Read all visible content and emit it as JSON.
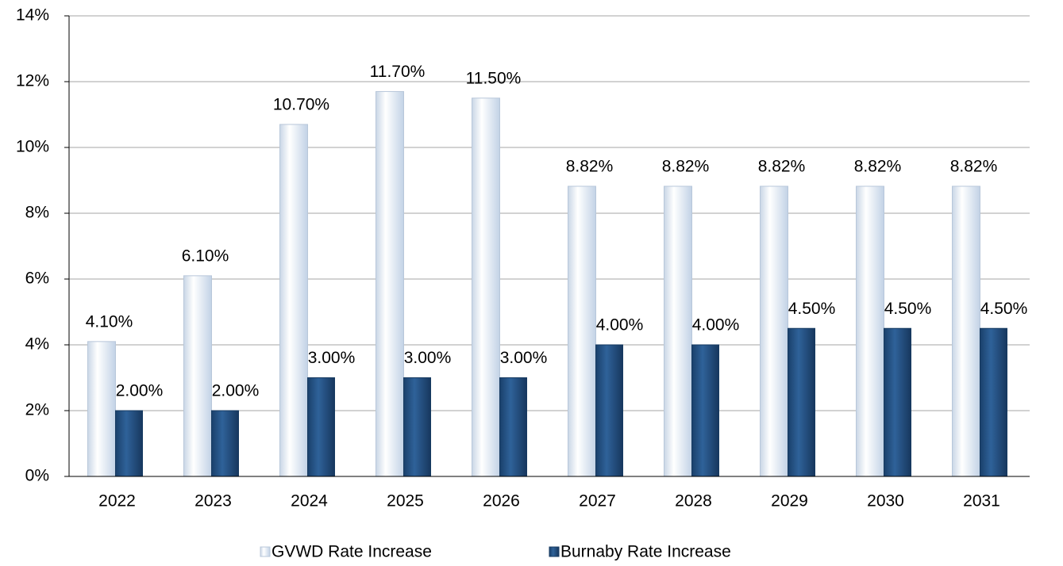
{
  "chart_data": {
    "type": "bar",
    "categories": [
      "2022",
      "2023",
      "2024",
      "2025",
      "2026",
      "2027",
      "2028",
      "2029",
      "2030",
      "2031"
    ],
    "series": [
      {
        "name": "GVWD Rate Increase",
        "color": "#dce6f2",
        "values": [
          4.1,
          6.1,
          10.7,
          11.7,
          11.5,
          8.82,
          8.82,
          8.82,
          8.82,
          8.82
        ],
        "value_labels": [
          "4.10%",
          "6.10%",
          "10.70%",
          "11.70%",
          "11.50%",
          "8.82%",
          "8.82%",
          "8.82%",
          "8.82%",
          "8.82%"
        ]
      },
      {
        "name": "Burnaby Rate Increase",
        "color": "#1f4e79",
        "values": [
          2,
          2,
          3,
          3,
          3,
          4,
          4,
          4.5,
          4.5,
          4.5
        ],
        "value_labels": [
          "2.00%",
          "2.00%",
          "3.00%",
          "3.00%",
          "3.00%",
          "4.00%",
          "4.00%",
          "4.50%",
          "4.50%",
          "4.50%"
        ]
      }
    ],
    "ylim": [
      0,
      14
    ],
    "yticks": [
      {
        "value": 0,
        "label": "0%"
      },
      {
        "value": 2,
        "label": "2%"
      },
      {
        "value": 4,
        "label": "4%"
      },
      {
        "value": 6,
        "label": "6%"
      },
      {
        "value": 8,
        "label": "8%"
      },
      {
        "value": 10,
        "label": "10%"
      },
      {
        "value": 12,
        "label": "12%"
      },
      {
        "value": 14,
        "label": "14%"
      }
    ],
    "grid": true,
    "legend": "bottom"
  }
}
